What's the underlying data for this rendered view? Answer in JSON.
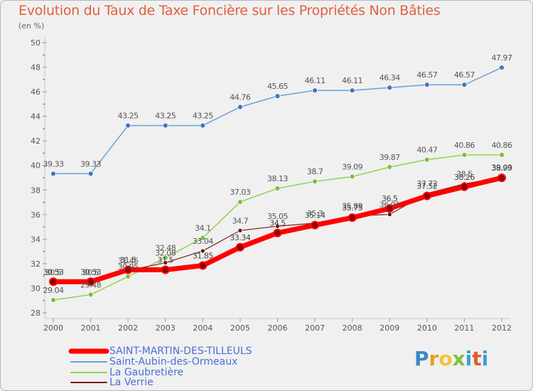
{
  "title": "Evolution du Taux de Taxe Foncière sur les Propriétés Non Bâties",
  "unit_label": "(en %)",
  "logo_text": "Proxiti",
  "chart_data": {
    "type": "line",
    "title": "Evolution du Taux de Taxe Foncière sur les Propriétés Non Bâties",
    "ylabel": "(en %)",
    "xlabel": "",
    "x": [
      "2000",
      "2001",
      "2002",
      "2003",
      "2004",
      "2005",
      "2006",
      "2007",
      "2008",
      "2009",
      "2010",
      "2011",
      "2012"
    ],
    "ylim": [
      28,
      50
    ],
    "yticks": [
      28,
      30,
      32,
      34,
      36,
      38,
      40,
      42,
      44,
      46,
      48,
      50
    ],
    "grid": false,
    "legend_position": "bottom-left",
    "series": [
      {
        "name": "SAINT-MARTIN-DES-TILLEULS",
        "color": "#ff0000",
        "values": [
          30.53,
          30.53,
          31.5,
          31.5,
          31.85,
          33.34,
          34.5,
          35.14,
          35.75,
          36.5,
          37.52,
          38.26,
          38.99
        ]
      },
      {
        "name": "Saint-Aubin-des-Ormeaux",
        "color": "#6a9fd8",
        "values": [
          39.33,
          39.33,
          43.25,
          43.25,
          43.25,
          44.76,
          45.65,
          46.11,
          46.11,
          46.34,
          46.57,
          46.57,
          47.97
        ]
      },
      {
        "name": "La Gaubretière",
        "color": "#90d050",
        "values": [
          29.04,
          29.48,
          30.95,
          32.48,
          34.1,
          37.03,
          38.13,
          38.7,
          39.09,
          39.87,
          40.47,
          40.86,
          40.86
        ]
      },
      {
        "name": "La Verrie",
        "color": "#7a2020",
        "values": [
          30.5,
          30.5,
          31.45,
          32.08,
          33.04,
          34.7,
          35.05,
          35.3,
          35.89,
          36.01,
          37.72,
          38.5,
          39.03
        ]
      }
    ]
  }
}
